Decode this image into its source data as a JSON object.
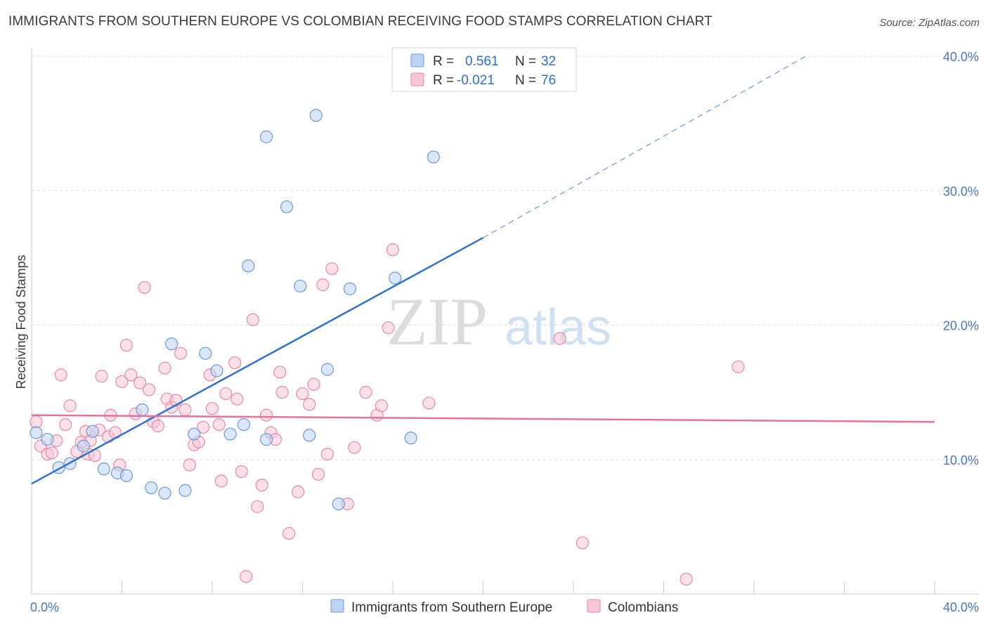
{
  "title": "IMMIGRANTS FROM SOUTHERN EUROPE VS COLOMBIAN RECEIVING FOOD STAMPS CORRELATION CHART",
  "source": "Source: ZipAtlas.com",
  "watermark": {
    "zip": "ZIP",
    "atlas": "atlas"
  },
  "colors": {
    "blue_fill": "#bcd4f2",
    "blue_stroke": "#6d9ad6",
    "blue_line": "#2f72d0",
    "pink_fill": "#f7c7d6",
    "pink_stroke": "#e88aa8",
    "pink_line": "#e8709a",
    "grid": "#dddddd",
    "tick_text": "#4a78c2"
  },
  "legend": {
    "row1": {
      "r_label": "R =",
      "r_value": "0.561",
      "n_label": "N =",
      "n_value": "32"
    },
    "row2": {
      "r_label": "R =",
      "r_value": "-0.021",
      "n_label": "N =",
      "n_value": "76"
    }
  },
  "chart_data": {
    "type": "scatter",
    "title": "IMMIGRANTS FROM SOUTHERN EUROPE VS COLOMBIAN RECEIVING FOOD STAMPS CORRELATION CHART",
    "xlabel": "",
    "ylabel": "Receiving Food Stamps",
    "xlim": [
      0,
      40
    ],
    "ylim": [
      0,
      40
    ],
    "x_tick_labels": [
      "0.0%",
      "40.0%"
    ],
    "y_ticks": [
      10,
      20,
      30,
      40
    ],
    "y_tick_labels": [
      "10.0%",
      "20.0%",
      "30.0%",
      "40.0%"
    ],
    "series": [
      {
        "name": "Immigrants from Southern Europe",
        "color": "#6d9ad6",
        "r": 0.561,
        "n": 32,
        "trend": {
          "x0": 0,
          "y0": 8.2,
          "x1": 20,
          "y1": 26.5,
          "dash_x1": 34.3,
          "dash_y1": 40
        },
        "points": [
          [
            0.2,
            12.0
          ],
          [
            0.7,
            11.5
          ],
          [
            1.2,
            9.4
          ],
          [
            1.7,
            9.7
          ],
          [
            2.3,
            11.0
          ],
          [
            2.7,
            12.1
          ],
          [
            3.2,
            9.3
          ],
          [
            3.8,
            9.0
          ],
          [
            4.2,
            8.8
          ],
          [
            4.9,
            13.7
          ],
          [
            5.3,
            7.9
          ],
          [
            5.9,
            7.5
          ],
          [
            6.2,
            18.6
          ],
          [
            6.8,
            7.7
          ],
          [
            7.2,
            11.9
          ],
          [
            7.7,
            17.9
          ],
          [
            8.2,
            16.6
          ],
          [
            8.8,
            11.9
          ],
          [
            9.4,
            12.6
          ],
          [
            9.6,
            24.4
          ],
          [
            10.4,
            11.5
          ],
          [
            10.4,
            34.0
          ],
          [
            11.3,
            28.8
          ],
          [
            11.9,
            22.9
          ],
          [
            12.3,
            11.8
          ],
          [
            12.6,
            35.6
          ],
          [
            13.1,
            16.7
          ],
          [
            13.6,
            6.7
          ],
          [
            14.1,
            22.7
          ],
          [
            16.1,
            23.5
          ],
          [
            16.8,
            11.6
          ],
          [
            17.8,
            32.5
          ]
        ]
      },
      {
        "name": "Colombians",
        "color": "#e88aa8",
        "r": -0.021,
        "n": 76,
        "trend": {
          "x0": 0,
          "y0": 13.3,
          "x1": 40,
          "y1": 12.8
        },
        "points": [
          [
            0.2,
            12.8
          ],
          [
            0.4,
            11.0
          ],
          [
            0.7,
            10.4
          ],
          [
            0.9,
            10.5
          ],
          [
            1.1,
            11.4
          ],
          [
            1.3,
            16.3
          ],
          [
            1.5,
            12.6
          ],
          [
            1.7,
            14.0
          ],
          [
            2.0,
            10.6
          ],
          [
            2.2,
            11.3
          ],
          [
            2.4,
            12.1
          ],
          [
            2.5,
            10.4
          ],
          [
            2.6,
            11.4
          ],
          [
            2.8,
            10.3
          ],
          [
            3.0,
            12.2
          ],
          [
            3.1,
            16.2
          ],
          [
            3.4,
            11.7
          ],
          [
            3.5,
            13.3
          ],
          [
            3.7,
            12.0
          ],
          [
            3.9,
            9.6
          ],
          [
            4.0,
            15.8
          ],
          [
            4.2,
            18.5
          ],
          [
            4.4,
            16.3
          ],
          [
            4.6,
            13.4
          ],
          [
            4.8,
            15.7
          ],
          [
            5.0,
            22.8
          ],
          [
            5.2,
            15.2
          ],
          [
            5.4,
            12.8
          ],
          [
            5.6,
            12.5
          ],
          [
            5.9,
            16.8
          ],
          [
            6.0,
            14.5
          ],
          [
            6.2,
            13.9
          ],
          [
            6.4,
            14.4
          ],
          [
            6.6,
            17.9
          ],
          [
            6.8,
            13.7
          ],
          [
            7.0,
            9.6
          ],
          [
            7.2,
            11.1
          ],
          [
            7.4,
            11.3
          ],
          [
            7.6,
            12.4
          ],
          [
            7.9,
            16.3
          ],
          [
            8.0,
            13.8
          ],
          [
            8.3,
            12.6
          ],
          [
            8.4,
            8.4
          ],
          [
            8.6,
            14.9
          ],
          [
            9.0,
            17.2
          ],
          [
            9.1,
            14.5
          ],
          [
            9.3,
            9.1
          ],
          [
            9.5,
            1.3
          ],
          [
            9.8,
            20.4
          ],
          [
            10.0,
            6.5
          ],
          [
            10.2,
            8.1
          ],
          [
            10.4,
            13.3
          ],
          [
            10.6,
            12.0
          ],
          [
            10.8,
            11.5
          ],
          [
            11.0,
            16.5
          ],
          [
            11.1,
            15.0
          ],
          [
            11.4,
            4.5
          ],
          [
            11.8,
            7.6
          ],
          [
            12.0,
            14.9
          ],
          [
            12.3,
            14.1
          ],
          [
            12.5,
            15.6
          ],
          [
            12.7,
            8.9
          ],
          [
            12.9,
            23.0
          ],
          [
            13.1,
            10.4
          ],
          [
            13.3,
            24.2
          ],
          [
            14.0,
            6.7
          ],
          [
            14.3,
            10.9
          ],
          [
            14.8,
            15.0
          ],
          [
            15.3,
            13.3
          ],
          [
            15.5,
            14.0
          ],
          [
            15.8,
            19.8
          ],
          [
            16.0,
            25.6
          ],
          [
            17.6,
            14.2
          ],
          [
            23.4,
            19.0
          ],
          [
            24.4,
            3.8
          ],
          [
            29.0,
            1.1
          ],
          [
            31.3,
            16.9
          ]
        ]
      }
    ],
    "legend_position": "top-center"
  }
}
